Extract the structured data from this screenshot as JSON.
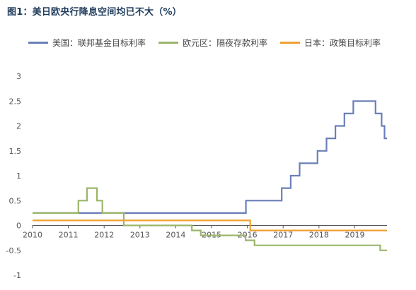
{
  "chart_data": {
    "type": "line",
    "step": true,
    "title": "图1：美日欧央行降息空间均已不大（%）",
    "xlabel": "",
    "ylabel": "",
    "xlim": [
      2010,
      2019.9
    ],
    "ylim": [
      -1,
      3
    ],
    "x_ticks": [
      "2010",
      "2011",
      "2012",
      "2013",
      "2014",
      "2015",
      "2016",
      "2017",
      "2018",
      "2019"
    ],
    "y_ticks": [
      "3",
      "2.5",
      "2",
      "1.5",
      "1",
      "0.5",
      "0",
      "-0.5",
      "-1"
    ],
    "grid": false,
    "legend_position": "top",
    "series": [
      {
        "name": "美国：联邦基金目标利率",
        "color": "#6a7fb8",
        "points": [
          [
            2010,
            0.25
          ],
          [
            2015.96,
            0.25
          ],
          [
            2015.96,
            0.5
          ],
          [
            2016.96,
            0.5
          ],
          [
            2016.96,
            0.75
          ],
          [
            2017.21,
            0.75
          ],
          [
            2017.21,
            1.0
          ],
          [
            2017.46,
            1.0
          ],
          [
            2017.46,
            1.25
          ],
          [
            2017.96,
            1.25
          ],
          [
            2017.96,
            1.5
          ],
          [
            2018.21,
            1.5
          ],
          [
            2018.21,
            1.75
          ],
          [
            2018.46,
            1.75
          ],
          [
            2018.46,
            2.0
          ],
          [
            2018.71,
            2.0
          ],
          [
            2018.71,
            2.25
          ],
          [
            2018.96,
            2.25
          ],
          [
            2018.96,
            2.5
          ],
          [
            2019.58,
            2.5
          ],
          [
            2019.58,
            2.25
          ],
          [
            2019.75,
            2.25
          ],
          [
            2019.75,
            2.0
          ],
          [
            2019.83,
            2.0
          ],
          [
            2019.83,
            1.75
          ],
          [
            2019.9,
            1.75
          ]
        ]
      },
      {
        "name": "欧元区：隔夜存款利率",
        "color": "#9bb56b",
        "points": [
          [
            2010,
            0.25
          ],
          [
            2011.28,
            0.25
          ],
          [
            2011.28,
            0.5
          ],
          [
            2011.52,
            0.5
          ],
          [
            2011.52,
            0.75
          ],
          [
            2011.8,
            0.75
          ],
          [
            2011.8,
            0.5
          ],
          [
            2011.95,
            0.5
          ],
          [
            2011.95,
            0.25
          ],
          [
            2012.55,
            0.25
          ],
          [
            2012.55,
            0.0
          ],
          [
            2014.45,
            0.0
          ],
          [
            2014.45,
            -0.1
          ],
          [
            2014.7,
            -0.1
          ],
          [
            2014.7,
            -0.2
          ],
          [
            2015.95,
            -0.2
          ],
          [
            2015.95,
            -0.3
          ],
          [
            2016.2,
            -0.3
          ],
          [
            2016.2,
            -0.4
          ],
          [
            2019.71,
            -0.4
          ],
          [
            2019.71,
            -0.5
          ],
          [
            2019.9,
            -0.5
          ]
        ]
      },
      {
        "name": "日本：政策目标利率",
        "color": "#f0a030",
        "points": [
          [
            2010,
            0.1
          ],
          [
            2016.08,
            0.1
          ],
          [
            2016.08,
            -0.1
          ],
          [
            2019.9,
            -0.1
          ]
        ]
      }
    ]
  }
}
